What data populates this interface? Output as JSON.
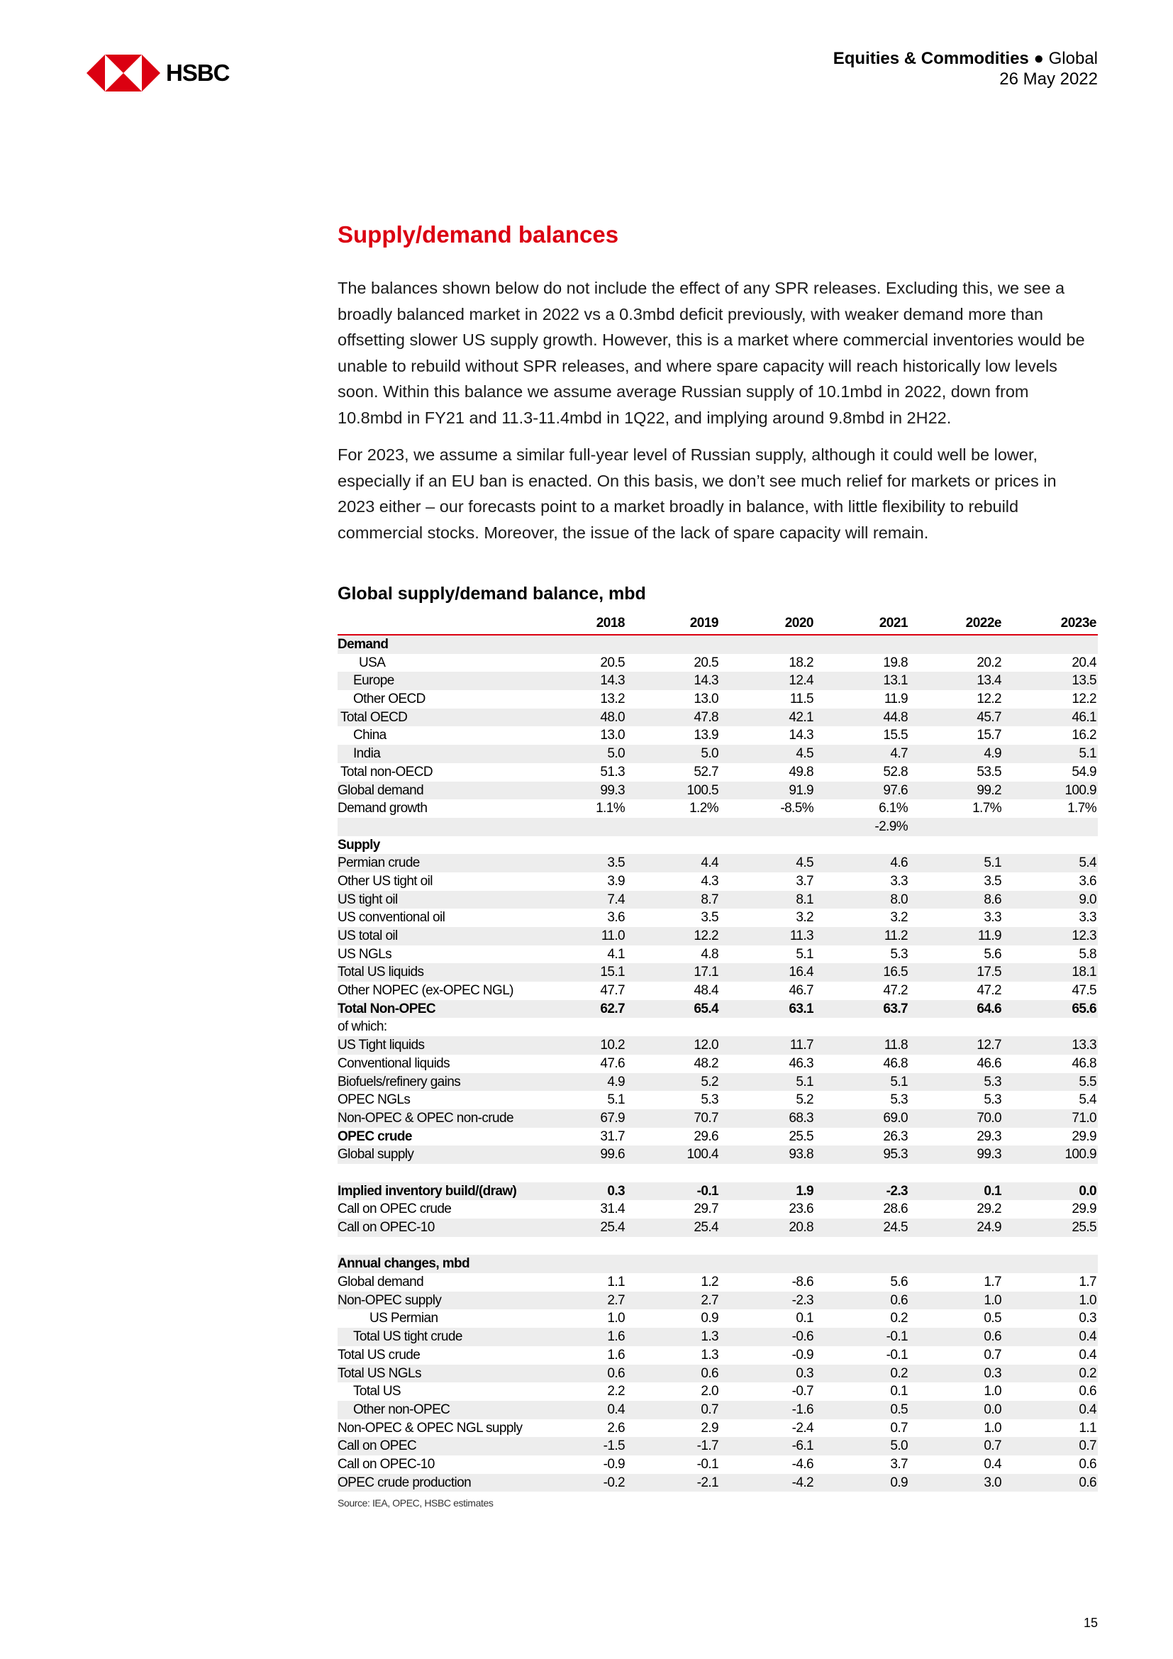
{
  "header": {
    "brand": "HSBC",
    "section": "Equities & Commodities",
    "separator": "●",
    "region": "Global",
    "date": "26 May 2022"
  },
  "title": "Supply/demand balances",
  "paragraphs": [
    "The balances shown below do not include the effect of any SPR releases. Excluding this, we see a broadly balanced market in 2022 vs a 0.3mbd deficit previously, with weaker demand more than offsetting slower US supply growth. However, this is a market where commercial inventories would be unable to rebuild without SPR releases, and where spare capacity will reach historically low levels soon. Within this balance we assume average Russian supply of 10.1mbd in 2022, down from 10.8mbd in FY21 and 11.3-11.4mbd in 1Q22, and implying around 9.8mbd in 2H22.",
    "For 2023, we assume a similar full-year level of Russian supply, although it could well be lower, especially if an EU ban is enacted. On this basis, we don’t see much relief for markets or prices in 2023 either – our forecasts point to a market broadly in balance, with little flexibility to rebuild commercial stocks. Moreover, the issue of the lack of spare capacity will remain."
  ],
  "table": {
    "title": "Global supply/demand balance, mbd",
    "columns": [
      "2018",
      "2019",
      "2020",
      "2021",
      "2022e",
      "2023e"
    ],
    "rows": [
      {
        "label": "Demand",
        "values": [],
        "bold": true,
        "level": 0
      },
      {
        "label": "USA",
        "values": [
          "20.5",
          "20.5",
          "18.2",
          "19.8",
          "20.2",
          "20.4"
        ],
        "level": 3
      },
      {
        "label": "Europe",
        "values": [
          "14.3",
          "14.3",
          "12.4",
          "13.1",
          "13.4",
          "13.5"
        ],
        "level": 2
      },
      {
        "label": "Other OECD",
        "values": [
          "13.2",
          "13.0",
          "11.5",
          "11.9",
          "12.2",
          "12.2"
        ],
        "level": 2
      },
      {
        "label": "Total OECD",
        "values": [
          "48.0",
          "47.8",
          "42.1",
          "44.8",
          "45.7",
          "46.1"
        ],
        "level": 1
      },
      {
        "label": "China",
        "values": [
          "13.0",
          "13.9",
          "14.3",
          "15.5",
          "15.7",
          "16.2"
        ],
        "level": 2
      },
      {
        "label": "India",
        "values": [
          "5.0",
          "5.0",
          "4.5",
          "4.7",
          "4.9",
          "5.1"
        ],
        "level": 2
      },
      {
        "label": "Total non-OECD",
        "values": [
          "51.3",
          "52.7",
          "49.8",
          "52.8",
          "53.5",
          "54.9"
        ],
        "level": 1
      },
      {
        "label": "Global demand",
        "values": [
          "99.3",
          "100.5",
          "91.9",
          "97.6",
          "99.2",
          "100.9"
        ],
        "level": 0
      },
      {
        "label": "Demand growth",
        "values": [
          "1.1%",
          "1.2%",
          "-8.5%",
          "6.1%",
          "1.7%",
          "1.7%"
        ],
        "level": 0
      },
      {
        "label": "",
        "values": [
          "",
          "",
          "",
          "-2.9%",
          "",
          ""
        ],
        "level": 0
      },
      {
        "label": "Supply",
        "values": [],
        "bold": true,
        "level": 0
      },
      {
        "label": "Permian crude",
        "values": [
          "3.5",
          "4.4",
          "4.5",
          "4.6",
          "5.1",
          "5.4"
        ],
        "level": 0
      },
      {
        "label": "Other US tight oil",
        "values": [
          "3.9",
          "4.3",
          "3.7",
          "3.3",
          "3.5",
          "3.6"
        ],
        "level": 0
      },
      {
        "label": "US tight oil",
        "values": [
          "7.4",
          "8.7",
          "8.1",
          "8.0",
          "8.6",
          "9.0"
        ],
        "level": 0
      },
      {
        "label": "US conventional oil",
        "values": [
          "3.6",
          "3.5",
          "3.2",
          "3.2",
          "3.3",
          "3.3"
        ],
        "level": 0
      },
      {
        "label": "US total oil",
        "values": [
          "11.0",
          "12.2",
          "11.3",
          "11.2",
          "11.9",
          "12.3"
        ],
        "level": 0
      },
      {
        "label": "US NGLs",
        "values": [
          "4.1",
          "4.8",
          "5.1",
          "5.3",
          "5.6",
          "5.8"
        ],
        "level": 0
      },
      {
        "label": "Total US liquids",
        "values": [
          "15.1",
          "17.1",
          "16.4",
          "16.5",
          "17.5",
          "18.1"
        ],
        "level": 0
      },
      {
        "label": "Other NOPEC (ex-OPEC NGL)",
        "values": [
          "47.7",
          "48.4",
          "46.7",
          "47.2",
          "47.2",
          "47.5"
        ],
        "level": 0
      },
      {
        "label": "Total Non-OPEC",
        "values": [
          "62.7",
          "65.4",
          "63.1",
          "63.7",
          "64.6",
          "65.6"
        ],
        "bold": true,
        "bold_values": true,
        "level": 0
      },
      {
        "label": "of which:",
        "values": [],
        "level": 0
      },
      {
        "label": "US Tight liquids",
        "values": [
          "10.2",
          "12.0",
          "11.7",
          "11.8",
          "12.7",
          "13.3"
        ],
        "level": 0
      },
      {
        "label": "Conventional liquids",
        "values": [
          "47.6",
          "48.2",
          "46.3",
          "46.8",
          "46.6",
          "46.8"
        ],
        "level": 0
      },
      {
        "label": "Biofuels/refinery gains",
        "values": [
          "4.9",
          "5.2",
          "5.1",
          "5.1",
          "5.3",
          "5.5"
        ],
        "level": 0
      },
      {
        "label": "OPEC NGLs",
        "values": [
          "5.1",
          "5.3",
          "5.2",
          "5.3",
          "5.3",
          "5.4"
        ],
        "level": 0
      },
      {
        "label": "Non-OPEC & OPEC non-crude",
        "values": [
          "67.9",
          "70.7",
          "68.3",
          "69.0",
          "70.0",
          "71.0"
        ],
        "level": 0
      },
      {
        "label": "OPEC crude",
        "values": [
          "31.7",
          "29.6",
          "25.5",
          "26.3",
          "29.3",
          "29.9"
        ],
        "bold": true,
        "level": 0
      },
      {
        "label": "Global supply",
        "values": [
          "99.6",
          "100.4",
          "93.8",
          "95.3",
          "99.3",
          "100.9"
        ],
        "level": 0
      },
      {
        "label": "",
        "values": [],
        "level": 0
      },
      {
        "label": "Implied inventory build/(draw)",
        "values": [
          "0.3",
          "-0.1",
          "1.9",
          "-2.3",
          "0.1",
          "0.0"
        ],
        "bold": true,
        "bold_values": true,
        "level": 0
      },
      {
        "label": "Call on OPEC crude",
        "values": [
          "31.4",
          "29.7",
          "23.6",
          "28.6",
          "29.2",
          "29.9"
        ],
        "level": 0
      },
      {
        "label": "Call on OPEC-10",
        "values": [
          "25.4",
          "25.4",
          "20.8",
          "24.5",
          "24.9",
          "25.5"
        ],
        "level": 0
      },
      {
        "label": "",
        "values": [],
        "level": 0
      },
      {
        "label": "Annual changes, mbd",
        "values": [],
        "bold": true,
        "level": 0
      },
      {
        "label": "Global demand",
        "values": [
          "1.1",
          "1.2",
          "-8.6",
          "5.6",
          "1.7",
          "1.7"
        ],
        "level": 0
      },
      {
        "label": "Non-OPEC supply",
        "values": [
          "2.7",
          "2.7",
          "-2.3",
          "0.6",
          "1.0",
          "1.0"
        ],
        "level": 0
      },
      {
        "label": "US Permian",
        "values": [
          "1.0",
          "0.9",
          "0.1",
          "0.2",
          "0.5",
          "0.3"
        ],
        "level": 4
      },
      {
        "label": "Total US tight crude",
        "values": [
          "1.6",
          "1.3",
          "-0.6",
          "-0.1",
          "0.6",
          "0.4"
        ],
        "level": 2
      },
      {
        "label": "Total US crude",
        "values": [
          "1.6",
          "1.3",
          "-0.9",
          "-0.1",
          "0.7",
          "0.4"
        ],
        "level": 0
      },
      {
        "label": "Total US NGLs",
        "values": [
          "0.6",
          "0.6",
          "0.3",
          "0.2",
          "0.3",
          "0.2"
        ],
        "level": 0
      },
      {
        "label": "Total US",
        "values": [
          "2.2",
          "2.0",
          "-0.7",
          "0.1",
          "1.0",
          "0.6"
        ],
        "level": 2
      },
      {
        "label": "Other non-OPEC",
        "values": [
          "0.4",
          "0.7",
          "-1.6",
          "0.5",
          "0.0",
          "0.4"
        ],
        "level": 2
      },
      {
        "label": "Non-OPEC & OPEC NGL supply",
        "values": [
          "2.6",
          "2.9",
          "-2.4",
          "0.7",
          "1.0",
          "1.1"
        ],
        "level": 0
      },
      {
        "label": "Call on OPEC",
        "values": [
          "-1.5",
          "-1.7",
          "-6.1",
          "5.0",
          "0.7",
          "0.7"
        ],
        "level": 0
      },
      {
        "label": "Call on OPEC-10",
        "values": [
          "-0.9",
          "-0.1",
          "-4.6",
          "3.7",
          "0.4",
          "0.6"
        ],
        "level": 0
      },
      {
        "label": "OPEC crude production",
        "values": [
          "-0.2",
          "-2.1",
          "-4.2",
          "0.9",
          "3.0",
          "0.6"
        ],
        "level": 0
      }
    ],
    "source": "Source: IEA, OPEC, HSBC estimates"
  },
  "page_number": "15",
  "colors": {
    "brand_red": "#db0011",
    "row_stripe": "#ededed"
  }
}
